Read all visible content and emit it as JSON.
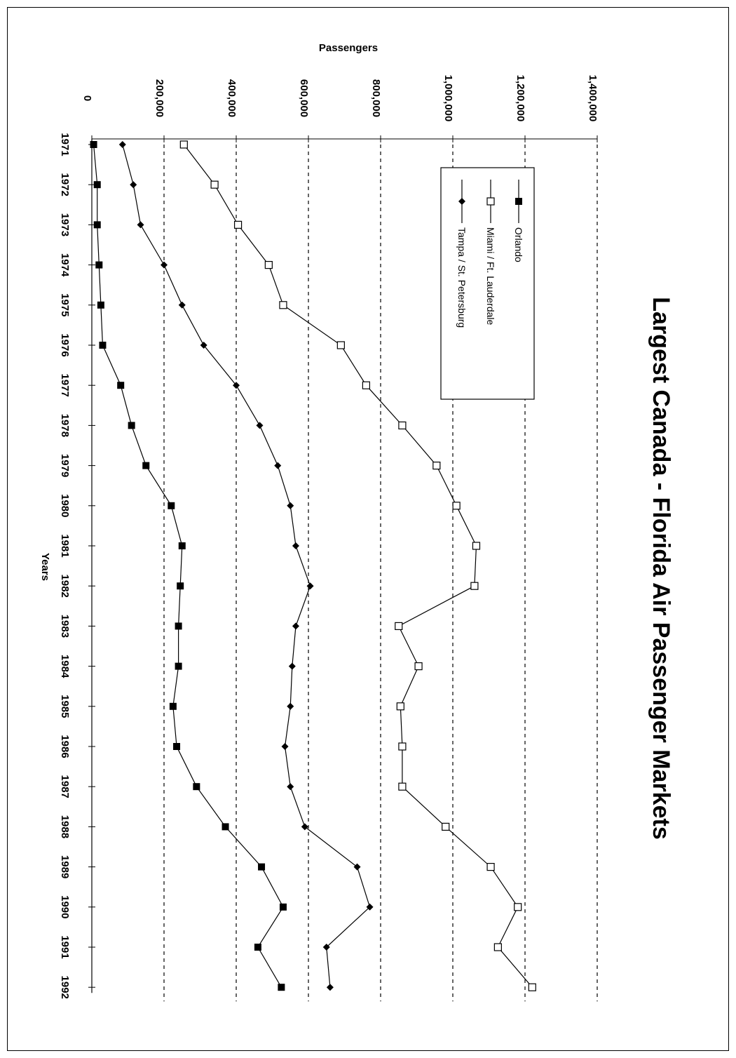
{
  "chart_data": {
    "type": "line",
    "orientation": "rotated-90-clockwise",
    "title": "Largest Canada - Florida Air Passenger Markets",
    "xlabel": "Years",
    "ylabel": "Passengers",
    "ylim": [
      0,
      1400000
    ],
    "ytick_labels": [
      "0",
      "200,000",
      "400,000",
      "600,000",
      "800,000",
      "1,000,000",
      "1,200,000",
      "1,400,000"
    ],
    "ytick_values": [
      0,
      200000,
      400000,
      600000,
      800000,
      1000000,
      1200000,
      1400000
    ],
    "grid": true,
    "legend_placement": "top-right",
    "categories": [
      "1971",
      "1972",
      "1973",
      "1974",
      "1975",
      "1976",
      "1977",
      "1978",
      "1979",
      "1980",
      "1981",
      "1982",
      "1983",
      "1984",
      "1985",
      "1986",
      "1987",
      "1988",
      "1989",
      "1990",
      "1991",
      "1992"
    ],
    "series": [
      {
        "name": "Orlando",
        "marker": "filled-square",
        "values": [
          5000,
          15000,
          15000,
          20000,
          25000,
          30000,
          80000,
          110000,
          150000,
          220000,
          250000,
          245000,
          240000,
          240000,
          225000,
          235000,
          290000,
          370000,
          470000,
          530000,
          460000,
          525000
        ]
      },
      {
        "name": "Miami / Ft. Lauderdale",
        "marker": "open-square",
        "values": [
          255000,
          340000,
          405000,
          490000,
          530000,
          690000,
          760000,
          860000,
          955000,
          1010000,
          1065000,
          1060000,
          850000,
          905000,
          855000,
          860000,
          860000,
          980000,
          1105000,
          1180000,
          1125000,
          1220000
        ]
      },
      {
        "name": "Tampa / St. Petersburg",
        "marker": "filled-diamond",
        "values": [
          85000,
          115000,
          135000,
          200000,
          250000,
          310000,
          400000,
          465000,
          515000,
          550000,
          565000,
          605000,
          565000,
          555000,
          550000,
          535000,
          550000,
          590000,
          735000,
          770000,
          650000,
          660000
        ]
      }
    ]
  }
}
